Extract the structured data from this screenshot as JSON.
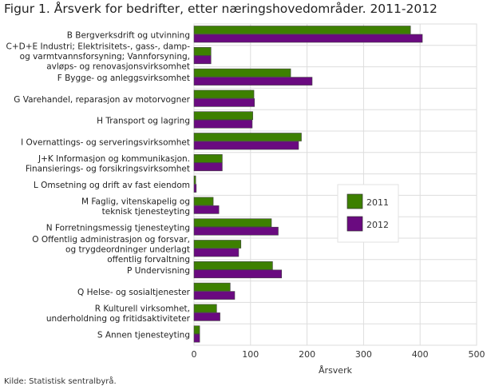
{
  "title": "Figur 1. Årsverk for bedrifter, etter næringshovedområder. 2011-2012",
  "source": "Kilde: Statistisk sentralbyrå.",
  "chart_data": {
    "type": "bar",
    "orientation": "horizontal",
    "title": "Figur 1. Årsverk for bedrifter, etter næringshovedområder. 2011-2012",
    "xlabel": "Årsverk",
    "ylabel": "",
    "xlim": [
      0,
      500
    ],
    "xticks": [
      0,
      100,
      200,
      300,
      400,
      500
    ],
    "grid": true,
    "legend_position": "right-middle",
    "categories": [
      [
        "B Bergverksdrift og utvinning"
      ],
      [
        "C+D+E Industri; Elektrisitets-, gass-, damp-",
        "og varmtvannsforsyning; Vannforsyning,",
        "avløps- og renovasjonsvirksomhet"
      ],
      [
        "F Bygge- og anleggsvirksomhet"
      ],
      [
        "G Varehandel, reparasjon av motorvogner"
      ],
      [
        "H Transport og lagring"
      ],
      [
        "I Overnattings- og serveringsvirksomhet"
      ],
      [
        "J+K Informasjon og kommunikasjon.",
        "Finansierings- og forsikringsvirksomhet"
      ],
      [
        "L Omsetning og drift av fast eiendom"
      ],
      [
        "M Faglig, vitenskapelig og",
        "teknisk tjenesteyting"
      ],
      [
        "N Forretningsmessig tjenesteyting"
      ],
      [
        "O Offentlig administrasjon og forsvar,",
        "og trygdeordninger underlagt",
        "offentlig forvaltning"
      ],
      [
        "P Undervisning"
      ],
      [
        "Q Helse- og sosialtjenester"
      ],
      [
        "R Kulturell virksomhet,",
        "underholdning og fritidsaktiviteter"
      ],
      [
        "S Annen tjenesteyting"
      ]
    ],
    "series": [
      {
        "name": "2011",
        "color": "#3d8000",
        "values": [
          383,
          30,
          171,
          106,
          104,
          190,
          50,
          3,
          34,
          137,
          83,
          139,
          64,
          40,
          10
        ]
      },
      {
        "name": "2012",
        "color": "#6a0a80",
        "values": [
          404,
          30,
          209,
          107,
          103,
          185,
          50,
          4,
          44,
          149,
          79,
          155,
          72,
          46,
          10
        ]
      }
    ]
  }
}
